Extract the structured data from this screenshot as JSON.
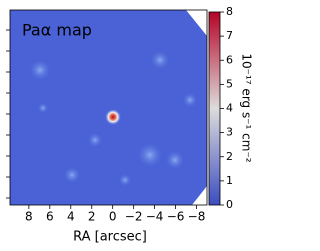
{
  "chart_data": {
    "type": "image",
    "title": "Paα map",
    "xlabel": "RA [arcsec]",
    "xlim": [
      9.8,
      -9.0
    ],
    "xticks": [
      8,
      6,
      4,
      2,
      0,
      {
        "value": -2,
        "label": "−2"
      },
      {
        "value": -4,
        "label": "−4"
      },
      {
        "value": -6,
        "label": "−6"
      },
      {
        "value": -8,
        "label": "−8"
      }
    ],
    "colorbar": {
      "label": "10⁻¹⁷ erg s⁻¹ cm⁻²",
      "lim": [
        0,
        8
      ],
      "ticks": [
        0,
        1,
        2,
        3,
        4,
        5,
        6,
        7,
        8
      ],
      "colors": [
        "#3b4cc0",
        "#dddcdc",
        "#b40426"
      ]
    }
  }
}
